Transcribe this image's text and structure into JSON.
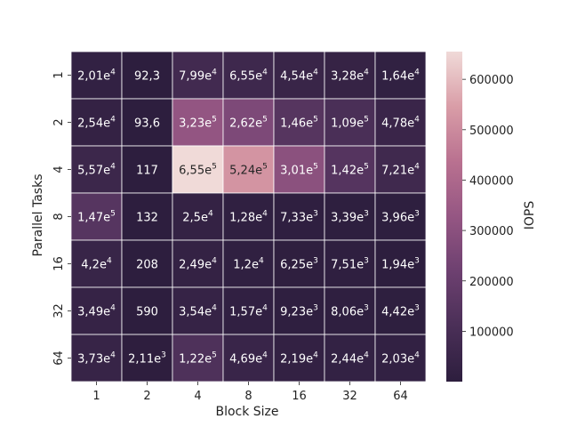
{
  "chart_data": {
    "type": "heatmap",
    "xlabel": "Block Size",
    "ylabel": "Parallel Tasks",
    "x_categories": [
      "1",
      "2",
      "4",
      "8",
      "16",
      "32",
      "64"
    ],
    "y_categories": [
      "1",
      "2",
      "4",
      "8",
      "16",
      "32",
      "64"
    ],
    "values": [
      [
        20100,
        92.3,
        79900,
        65500,
        45400,
        32800,
        16400
      ],
      [
        25400,
        93.6,
        323000,
        262000,
        146000,
        109000,
        47800
      ],
      [
        55700,
        117,
        655000,
        524000,
        301000,
        142000,
        72100
      ],
      [
        147000,
        132,
        25000,
        12800,
        7330,
        3390,
        3960
      ],
      [
        42000,
        208,
        24900,
        12000,
        6250,
        7510,
        1940
      ],
      [
        34900,
        590,
        35400,
        15700,
        9230,
        8060,
        4420
      ],
      [
        37300,
        2110,
        122000,
        46900,
        21900,
        24400,
        20300
      ]
    ],
    "annotations": [
      [
        {
          "m": "2,01",
          "e": "4"
        },
        {
          "m": "92,3",
          "e": ""
        },
        {
          "m": "7,99",
          "e": "4"
        },
        {
          "m": "6,55",
          "e": "4"
        },
        {
          "m": "4,54",
          "e": "4"
        },
        {
          "m": "3,28",
          "e": "4"
        },
        {
          "m": "1,64",
          "e": "4"
        }
      ],
      [
        {
          "m": "2,54",
          "e": "4"
        },
        {
          "m": "93,6",
          "e": ""
        },
        {
          "m": "3,23",
          "e": "5"
        },
        {
          "m": "2,62",
          "e": "5"
        },
        {
          "m": "1,46",
          "e": "5"
        },
        {
          "m": "1,09",
          "e": "5"
        },
        {
          "m": "4,78",
          "e": "4"
        }
      ],
      [
        {
          "m": "5,57",
          "e": "4"
        },
        {
          "m": "117",
          "e": ""
        },
        {
          "m": "6,55",
          "e": "5"
        },
        {
          "m": "5,24",
          "e": "5"
        },
        {
          "m": "3,01",
          "e": "5"
        },
        {
          "m": "1,42",
          "e": "5"
        },
        {
          "m": "7,21",
          "e": "4"
        }
      ],
      [
        {
          "m": "1,47",
          "e": "5"
        },
        {
          "m": "132",
          "e": ""
        },
        {
          "m": "2,5",
          "e": "4"
        },
        {
          "m": "1,28",
          "e": "4"
        },
        {
          "m": "7,33",
          "e": "3"
        },
        {
          "m": "3,39",
          "e": "3"
        },
        {
          "m": "3,96",
          "e": "3"
        }
      ],
      [
        {
          "m": "4,2",
          "e": "4"
        },
        {
          "m": "208",
          "e": ""
        },
        {
          "m": "2,49",
          "e": "4"
        },
        {
          "m": "1,2",
          "e": "4"
        },
        {
          "m": "6,25",
          "e": "3"
        },
        {
          "m": "7,51",
          "e": "3"
        },
        {
          "m": "1,94",
          "e": "3"
        }
      ],
      [
        {
          "m": "3,49",
          "e": "4"
        },
        {
          "m": "590",
          "e": ""
        },
        {
          "m": "3,54",
          "e": "4"
        },
        {
          "m": "1,57",
          "e": "4"
        },
        {
          "m": "9,23",
          "e": "3"
        },
        {
          "m": "8,06",
          "e": "3"
        },
        {
          "m": "4,42",
          "e": "3"
        }
      ],
      [
        {
          "m": "3,73",
          "e": "4"
        },
        {
          "m": "2,11",
          "e": "3"
        },
        {
          "m": "1,22",
          "e": "5"
        },
        {
          "m": "4,69",
          "e": "4"
        },
        {
          "m": "2,19",
          "e": "4"
        },
        {
          "m": "2,44",
          "e": "4"
        },
        {
          "m": "2,03",
          "e": "4"
        }
      ]
    ],
    "colorbar": {
      "label": "IOPS",
      "min": 92.3,
      "max": 655000,
      "ticks": [
        100000,
        200000,
        300000,
        400000,
        500000,
        600000
      ],
      "tick_labels": [
        "100000",
        "200000",
        "300000",
        "400000",
        "500000",
        "600000"
      ]
    },
    "colormap_stops": [
      "#2d1e3e",
      "#4a2f57",
      "#6d4070",
      "#955683",
      "#b97190",
      "#d99da7",
      "#f0dad8"
    ],
    "grid": true
  }
}
